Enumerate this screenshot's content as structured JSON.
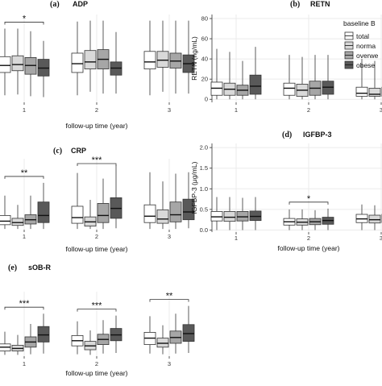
{
  "colors": {
    "total": "#ffffff",
    "normal": "#d9d9d9",
    "overweight": "#a6a6a6",
    "obese": "#595959",
    "grid": "#ebebeb",
    "edge": "#333333"
  },
  "legend": {
    "title": "baseline B",
    "entries": [
      "total",
      "norma",
      "overwe",
      "obese"
    ]
  },
  "chart_data": [
    {
      "type": "box",
      "letter": "(a)",
      "title": "ADP",
      "ylabel": "",
      "xlabel": "follow-up time (year)",
      "ylim": [
        0,
        10
      ],
      "yticks": [],
      "categories": [
        "1",
        "2",
        "3"
      ],
      "series": [
        {
          "group": "total",
          "boxes": [
            [
              0.8,
              3.4,
              4.2,
              5.2,
              8.4
            ],
            [
              0.8,
              3.4,
              4.4,
              5.6,
              9.2
            ],
            [
              0.8,
              3.8,
              4.6,
              5.8,
              9.3
            ]
          ]
        },
        {
          "group": "normal",
          "boxes": [
            [
              0.9,
              3.6,
              4.3,
              5.3,
              8.4
            ],
            [
              1.2,
              3.8,
              4.6,
              5.9,
              9.3
            ],
            [
              1.2,
              4.0,
              4.8,
              5.8,
              9.3
            ]
          ]
        },
        {
          "group": "overweight",
          "boxes": [
            [
              0.7,
              3.2,
              4.2,
              5.1,
              8.1
            ],
            [
              1.0,
              3.8,
              4.9,
              6.0,
              9.3
            ],
            [
              1.0,
              3.9,
              4.7,
              5.6,
              9.3
            ]
          ]
        },
        {
          "group": "obese",
          "boxes": [
            [
              0.6,
              3.0,
              3.9,
              4.9,
              7.0
            ],
            [
              1.0,
              3.1,
              3.9,
              4.6,
              8.0
            ],
            [
              1.0,
              3.4,
              4.4,
              5.4,
              9.3
            ]
          ]
        }
      ],
      "significance": [
        {
          "category": "1",
          "label": "*"
        }
      ]
    },
    {
      "type": "box",
      "letter": "(b)",
      "title": "RETN",
      "ylabel": "RETN (ng/mL)",
      "xlabel": "",
      "ylim": [
        -3,
        84
      ],
      "yticks": [
        0,
        20,
        40,
        60,
        80
      ],
      "categories": [
        "1",
        "2",
        "3"
      ],
      "series": [
        {
          "group": "total",
          "boxes": [
            [
              0,
              4,
              11,
              17,
              50
            ],
            [
              0,
              4,
              11,
              16,
              44
            ],
            [
              0,
              3,
              6,
              12,
              40
            ]
          ]
        },
        {
          "group": "normal",
          "boxes": [
            [
              0,
              4,
              10,
              16,
              47
            ],
            [
              0,
              3,
              9,
              15,
              42
            ],
            [
              0,
              3,
              5,
              11,
              38
            ]
          ]
        },
        {
          "group": "overweight",
          "boxes": [
            [
              0,
              4,
              9,
              14,
              38
            ],
            [
              0,
              4,
              11,
              18,
              44
            ],
            [
              0,
              3,
              6,
              12,
              38
            ]
          ]
        },
        {
          "group": "obese",
          "boxes": [
            [
              0,
              5,
              13,
              24,
              52
            ],
            [
              0,
              5,
              12,
              18,
              44
            ],
            [
              0,
              4,
              7,
              13,
              42
            ]
          ]
        }
      ],
      "significance": []
    },
    {
      "type": "box",
      "letter": "(c)",
      "title": "CRP",
      "ylabel": "",
      "xlabel": "follow-up time (year)",
      "ylim": [
        0,
        10
      ],
      "yticks": [],
      "categories": [
        "1",
        "2",
        "3"
      ],
      "series": [
        {
          "group": "total",
          "boxes": [
            [
              0.1,
              0.7,
              1.2,
              2.0,
              4.8
            ],
            [
              0.1,
              0.9,
              1.7,
              3.3,
              8.0
            ],
            [
              0.1,
              1.0,
              1.9,
              3.5,
              8.1
            ]
          ]
        },
        {
          "group": "normal",
          "boxes": [
            [
              0.1,
              0.6,
              1.0,
              1.6,
              3.5
            ],
            [
              0.1,
              0.5,
              1.1,
              1.8,
              4.2
            ],
            [
              0.1,
              0.9,
              1.5,
              2.8,
              6.8
            ]
          ]
        },
        {
          "group": "overweight",
          "boxes": [
            [
              0.1,
              0.8,
              1.4,
              2.1,
              4.8
            ],
            [
              0.1,
              1.0,
              2.0,
              3.7,
              7.2
            ],
            [
              0.1,
              1.1,
              2.1,
              3.9,
              7.9
            ]
          ]
        },
        {
          "group": "obese",
          "boxes": [
            [
              0.1,
              1.0,
              2.0,
              3.9,
              6.6
            ],
            [
              0.2,
              1.6,
              3.0,
              4.5,
              9.1
            ],
            [
              0.2,
              1.4,
              2.5,
              4.3,
              8.1
            ]
          ]
        }
      ],
      "significance": [
        {
          "category": "1",
          "label": "**"
        },
        {
          "category": "2",
          "label": "***"
        }
      ]
    },
    {
      "type": "box",
      "letter": "(d)",
      "title": "IGFBP-3",
      "ylabel": "IGFBP-3 (μg/mL)",
      "xlabel": "follow-up time (year)",
      "ylim": [
        -0.05,
        2.1
      ],
      "yticks": [
        0.0,
        0.5,
        1.0,
        1.5,
        2.0
      ],
      "categories": [
        "1",
        "2",
        "3"
      ],
      "series": [
        {
          "group": "total",
          "boxes": [
            [
              0.0,
              0.22,
              0.32,
              0.45,
              0.8
            ],
            [
              0.0,
              0.12,
              0.2,
              0.28,
              0.5
            ],
            [
              0.0,
              0.18,
              0.27,
              0.38,
              0.62
            ]
          ]
        },
        {
          "group": "normal",
          "boxes": [
            [
              0.0,
              0.21,
              0.31,
              0.45,
              0.8
            ],
            [
              0.0,
              0.12,
              0.19,
              0.27,
              0.5
            ],
            [
              0.0,
              0.17,
              0.25,
              0.36,
              0.6
            ]
          ]
        },
        {
          "group": "overweight",
          "boxes": [
            [
              0.0,
              0.22,
              0.32,
              0.45,
              0.78
            ],
            [
              0.0,
              0.13,
              0.2,
              0.28,
              0.48
            ],
            [
              0.0,
              0.18,
              0.27,
              0.38,
              0.62
            ]
          ]
        },
        {
          "group": "obese",
          "boxes": [
            [
              0.0,
              0.23,
              0.33,
              0.46,
              0.8
            ],
            [
              0.0,
              0.14,
              0.23,
              0.31,
              0.52
            ],
            [
              0.0,
              0.19,
              0.28,
              0.4,
              0.65
            ]
          ]
        }
      ],
      "significance": [
        {
          "category": "2",
          "label": "*"
        }
      ]
    },
    {
      "type": "box",
      "letter": "(e)",
      "title": "sOB-R",
      "ylabel": "",
      "xlabel": "follow-up time (year)",
      "ylim": [
        0,
        10
      ],
      "yticks": [],
      "categories": [
        "1",
        "2",
        "3"
      ],
      "series": [
        {
          "group": "total",
          "boxes": [
            [
              0.2,
              0.8,
              1.4,
              1.9,
              3.8
            ],
            [
              0.3,
              1.6,
              2.4,
              3.2,
              5.4
            ],
            [
              0.4,
              1.8,
              2.8,
              3.7,
              6.2
            ]
          ]
        },
        {
          "group": "normal",
          "boxes": [
            [
              0.2,
              0.8,
              1.2,
              1.7,
              3.3
            ],
            [
              0.2,
              1.0,
              1.6,
              2.3,
              4.0
            ],
            [
              0.3,
              1.4,
              2.0,
              2.8,
              4.8
            ]
          ]
        },
        {
          "group": "overweight",
          "boxes": [
            [
              0.3,
              1.4,
              2.2,
              3.0,
              5.0
            ],
            [
              0.4,
              1.8,
              2.6,
              3.4,
              5.6
            ],
            [
              0.4,
              2.0,
              2.9,
              3.9,
              6.6
            ]
          ]
        },
        {
          "group": "obese",
          "boxes": [
            [
              0.4,
              2.2,
              3.3,
              4.6,
              6.6
            ],
            [
              0.5,
              2.4,
              3.3,
              4.3,
              6.3
            ],
            [
              0.5,
              2.3,
              3.5,
              4.9,
              7.8
            ]
          ]
        }
      ],
      "significance": [
        {
          "category": "1",
          "label": "***"
        },
        {
          "category": "2",
          "label": "***"
        },
        {
          "category": "3",
          "label": "**"
        }
      ]
    }
  ]
}
